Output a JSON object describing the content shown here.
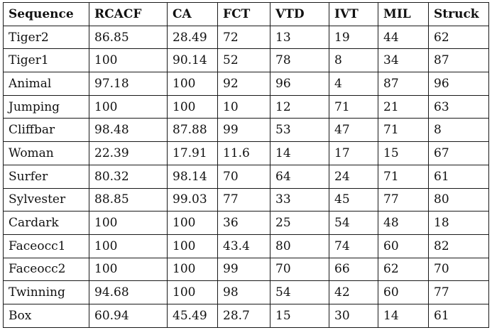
{
  "table": {
    "headers": [
      "Sequence",
      "RCACF",
      "CA",
      "FCT",
      "VTD",
      "IVT",
      "MIL",
      "Struck"
    ],
    "rows": [
      [
        "Tiger2",
        "86.85",
        "28.49",
        "72",
        "13",
        "19",
        "44",
        "62"
      ],
      [
        "Tiger1",
        "100",
        "90.14",
        "52",
        "78",
        "8",
        "34",
        "87"
      ],
      [
        "Animal",
        "97.18",
        "100",
        "92",
        "96",
        "4",
        "87",
        "96"
      ],
      [
        "Jumping",
        "100",
        "100",
        "10",
        "12",
        "71",
        "21",
        "63"
      ],
      [
        "Cliffbar",
        "98.48",
        "87.88",
        "99",
        "53",
        "47",
        "71",
        "8"
      ],
      [
        "Woman",
        "22.39",
        "17.91",
        "11.6",
        "14",
        "17",
        "15",
        "67"
      ],
      [
        "Surfer",
        "80.32",
        "98.14",
        "70",
        "64",
        "24",
        "71",
        "61"
      ],
      [
        "Sylvester",
        "88.85",
        "99.03",
        "77",
        "33",
        "45",
        "77",
        "80"
      ],
      [
        "Cardark",
        "100",
        "100",
        "36",
        "25",
        "54",
        "48",
        "18"
      ],
      [
        "Faceocc1",
        "100",
        "100",
        "43.4",
        "80",
        "74",
        "60",
        "82"
      ],
      [
        "Faceocc2",
        "100",
        "100",
        "99",
        "70",
        "66",
        "62",
        "70"
      ],
      [
        "Twinning",
        "94.68",
        "100",
        "98",
        "54",
        "42",
        "60",
        "77"
      ],
      [
        "Box",
        "60.94",
        "45.49",
        "28.7",
        "15",
        "30",
        "14",
        "61"
      ]
    ]
  }
}
